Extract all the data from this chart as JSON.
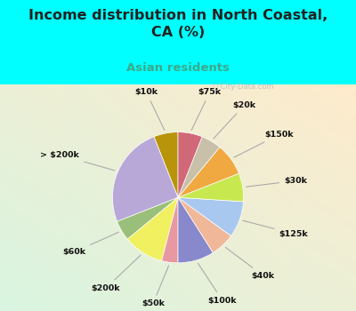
{
  "title": "Income distribution in North Coastal,\nCA (%)",
  "subtitle": "Asian residents",
  "title_color": "#222222",
  "subtitle_color": "#3aaa8a",
  "background_outer": "#00ffff",
  "watermark": "City-Data.com",
  "labels": [
    "$10k",
    "> $200k",
    "$60k",
    "$200k",
    "$50k",
    "$100k",
    "$40k",
    "$125k",
    "$30k",
    "$150k",
    "$20k",
    "$75k"
  ],
  "values": [
    6,
    25,
    5,
    10,
    4,
    9,
    6,
    9,
    7,
    8,
    5,
    6
  ],
  "colors": [
    "#b8940a",
    "#b8a8d8",
    "#9abf7a",
    "#f0f060",
    "#e898a0",
    "#8888cc",
    "#f0b898",
    "#a8c8f0",
    "#c8e850",
    "#f0a840",
    "#c8c0a8",
    "#d06878"
  ],
  "startangle": 90,
  "figsize": [
    4.0,
    3.5
  ],
  "dpi": 100
}
